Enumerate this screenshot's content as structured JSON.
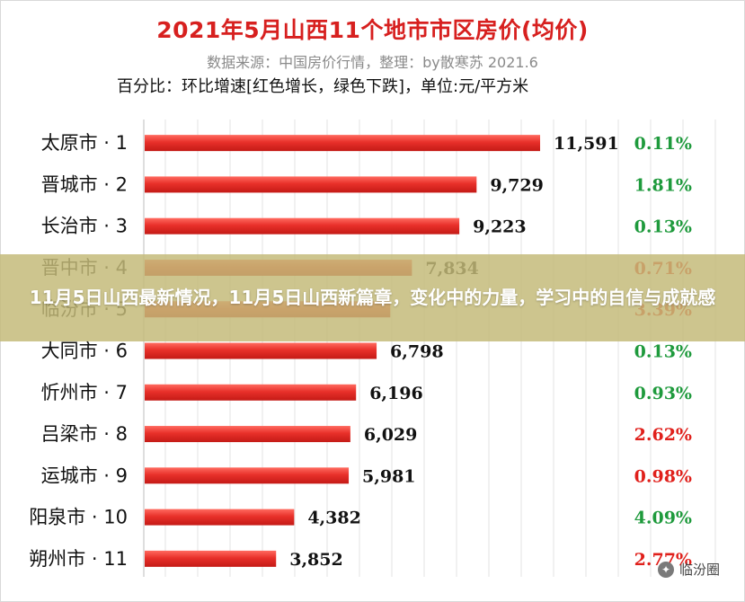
{
  "banner": {
    "text": "11月5日山西最新情况，11月5日山西新篇章，变化中的力量，学习中的自信与成就感"
  },
  "watermark": {
    "text": "临汾圈",
    "icon": "wechat-icon"
  },
  "colors": {
    "title": "#d7201f",
    "bar": "#e8302a",
    "increase": "#e0201b",
    "decrease": "#1e9a3c"
  },
  "chart_data": {
    "type": "bar",
    "orientation": "horizontal",
    "title": "2021年5月山西11个地市市区房价(均价)",
    "subtitle": "数据来源：中国房价行情，整理：by散寒苏 2021.6",
    "note": "百分比：环比增速[红色增长，绿色下跌]，单位:元/平方米",
    "grid": true,
    "xlim": [
      0,
      12000
    ],
    "categories": [
      "太原市 · 1",
      "晋城市 · 2",
      "长治市 · 3",
      "晋中市 · 4",
      "临汾市 · 5",
      "大同市 · 6",
      "忻州市 · 7",
      "吕梁市 · 8",
      "运城市 · 9",
      "阳泉市 · 10",
      "朔州市 · 11"
    ],
    "values": [
      11591,
      9729,
      9223,
      7834,
      7200,
      6798,
      6196,
      6029,
      5981,
      4382,
      3852
    ],
    "value_labels": [
      "11,591",
      "9,729",
      "9,223",
      "7,834",
      "",
      "6,798",
      "6,196",
      "6,029",
      "5,981",
      "4,382",
      "3,852"
    ],
    "pct_labels": [
      "0.11%",
      "1.81%",
      "0.13%",
      "0.71%",
      "3.39%",
      "0.13%",
      "0.93%",
      "2.62%",
      "0.98%",
      "4.09%",
      "2.77%"
    ],
    "pct_direction": [
      "down",
      "down",
      "down",
      "up",
      "up",
      "down",
      "down",
      "up",
      "up",
      "down",
      "up"
    ]
  }
}
